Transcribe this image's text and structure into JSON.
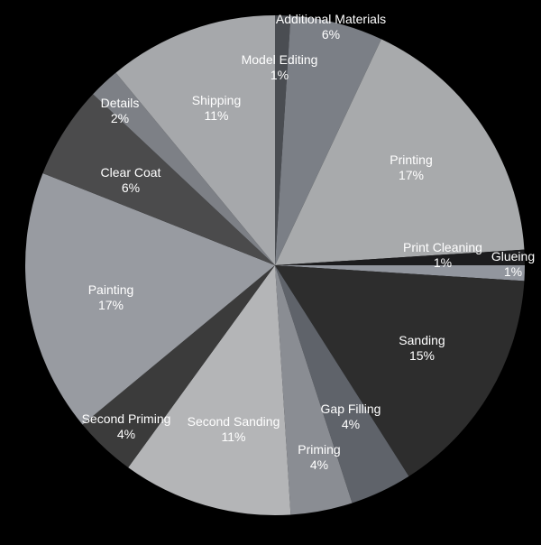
{
  "chart_data": {
    "type": "pie",
    "slices": [
      {
        "label": "Model Editing",
        "value": 1,
        "value_label": "1%",
        "color": "#4a4d52"
      },
      {
        "label": "Additional Materials",
        "value": 6,
        "value_label": "6%",
        "color": "#7b7f86"
      },
      {
        "label": "Printing",
        "value": 17,
        "value_label": "17%",
        "color": "#a8aaac"
      },
      {
        "label": "Print Cleaning",
        "value": 1,
        "value_label": "1%",
        "color": "#1c1c1e"
      },
      {
        "label": "Glueing",
        "value": 1,
        "value_label": "1%",
        "color": "#92969e"
      },
      {
        "label": "Sanding",
        "value": 15,
        "value_label": "15%",
        "color": "#2d2d2d"
      },
      {
        "label": "Gap Filling",
        "value": 4,
        "value_label": "4%",
        "color": "#5f636a"
      },
      {
        "label": "Priming",
        "value": 4,
        "value_label": "4%",
        "color": "#8a8d93"
      },
      {
        "label": "Second Sanding",
        "value": 11,
        "value_label": "11%",
        "color": "#b4b5b7"
      },
      {
        "label": "Second Priming",
        "value": 4,
        "value_label": "4%",
        "color": "#3b3b3b"
      },
      {
        "label": "Painting",
        "value": 17,
        "value_label": "17%",
        "color": "#989ba1"
      },
      {
        "label": "Clear Coat",
        "value": 6,
        "value_label": "6%",
        "color": "#4b4b4c"
      },
      {
        "label": "Details",
        "value": 2,
        "value_label": "2%",
        "color": "#7d8086"
      },
      {
        "label": "Shipping",
        "value": 11,
        "value_label": "11%",
        "color": "#a6a8ab"
      }
    ]
  }
}
